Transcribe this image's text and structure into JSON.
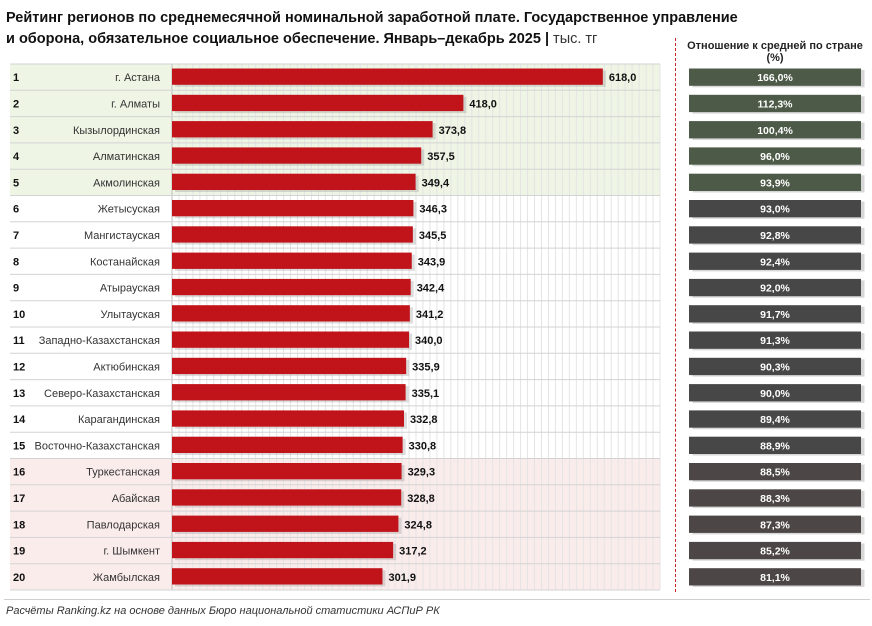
{
  "header": {
    "title": "Рейтинг регионов по среднемесячной номинальной заработной плате. Государственное управление и оборона, обязательное социальное обеспечение. Январь–декабрь 2025",
    "unit": "тыс. тг",
    "ratio_header": "Отношение к средней по стране (%)"
  },
  "footer": {
    "source": "Расчёты Ranking.kz на основе данных Бюро национальной статистики АСПиР РК"
  },
  "colors": {
    "bar": "#c0141a",
    "top_band": "#eef5e4",
    "bottom_band": "#fbecec",
    "ratio_top": "#4d5a47",
    "ratio_mid": "#474747",
    "ratio_bottom": "#4d4646"
  },
  "chart_data": {
    "type": "bar",
    "orientation": "horizontal",
    "ranks": [
      "1",
      "2",
      "3",
      "4",
      "5",
      "6",
      "7",
      "8",
      "9",
      "10",
      "11",
      "12",
      "13",
      "14",
      "15",
      "16",
      "17",
      "18",
      "19",
      "20"
    ],
    "categories": [
      "г. Астана",
      "г. Алматы",
      "Кызылординская",
      "Алматинская",
      "Акмолинская",
      "Жетысуская",
      "Мангистауская",
      "Костанайская",
      "Атырауская",
      "Улытауская",
      "Западно-Казахстанская",
      "Актюбинская",
      "Северо-Казахстанская",
      "Карагандинская",
      "Восточно-Казахстанская",
      "Туркестанская",
      "Абайская",
      "Павлодарская",
      "г. Шымкент",
      "Жамбылская"
    ],
    "values": [
      618.0,
      418.0,
      373.8,
      357.5,
      349.4,
      346.3,
      345.5,
      343.9,
      342.4,
      341.2,
      340.0,
      335.9,
      335.1,
      332.8,
      330.8,
      329.3,
      328.8,
      324.8,
      317.2,
      301.9
    ],
    "value_labels": [
      "618,0",
      "418,0",
      "373,8",
      "357,5",
      "349,4",
      "346,3",
      "345,5",
      "343,9",
      "342,4",
      "341,2",
      "340,0",
      "335,9",
      "335,1",
      "332,8",
      "330,8",
      "329,3",
      "328,8",
      "324,8",
      "317,2",
      "301,9"
    ],
    "ratio_labels": [
      "166,0%",
      "112,3%",
      "100,4%",
      "96,0%",
      "93,9%",
      "93,0%",
      "92,8%",
      "92,4%",
      "92,0%",
      "91,7%",
      "91,3%",
      "90,3%",
      "90,0%",
      "89,4%",
      "88,9%",
      "88,5%",
      "88,3%",
      "87,3%",
      "85,2%",
      "81,1%"
    ],
    "xlim": [
      0,
      700
    ],
    "highlight": {
      "top_count": 5,
      "bottom_count": 5
    },
    "grid": true
  }
}
